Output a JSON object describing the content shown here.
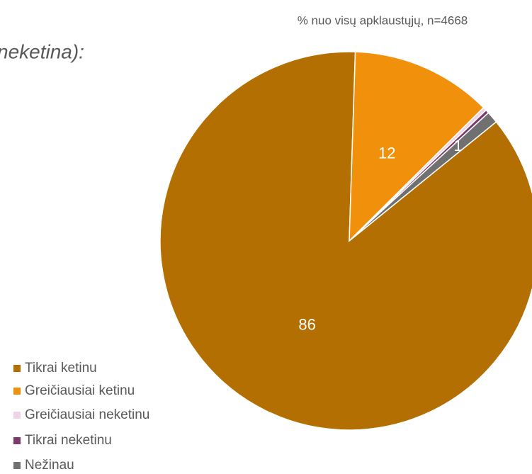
{
  "chart_data": {
    "type": "pie",
    "title": "neketina):",
    "subtitle": "% nuo visų apklaustųjų, n=4668",
    "categories": [
      "Tikrai ketinu",
      "Greičiausiai ketinu",
      "Greičiausiai neketinu",
      "Tikrai neketinu",
      "Nežinau"
    ],
    "values": [
      86,
      12,
      0.3,
      0.3,
      1
    ],
    "value_labels": [
      "86",
      "12",
      null,
      null,
      "1"
    ],
    "colors": [
      "#b46f02",
      "#f0900b",
      "#f1d3e6",
      "#7a3b6c",
      "#707070"
    ],
    "legend": "bottom-left"
  }
}
